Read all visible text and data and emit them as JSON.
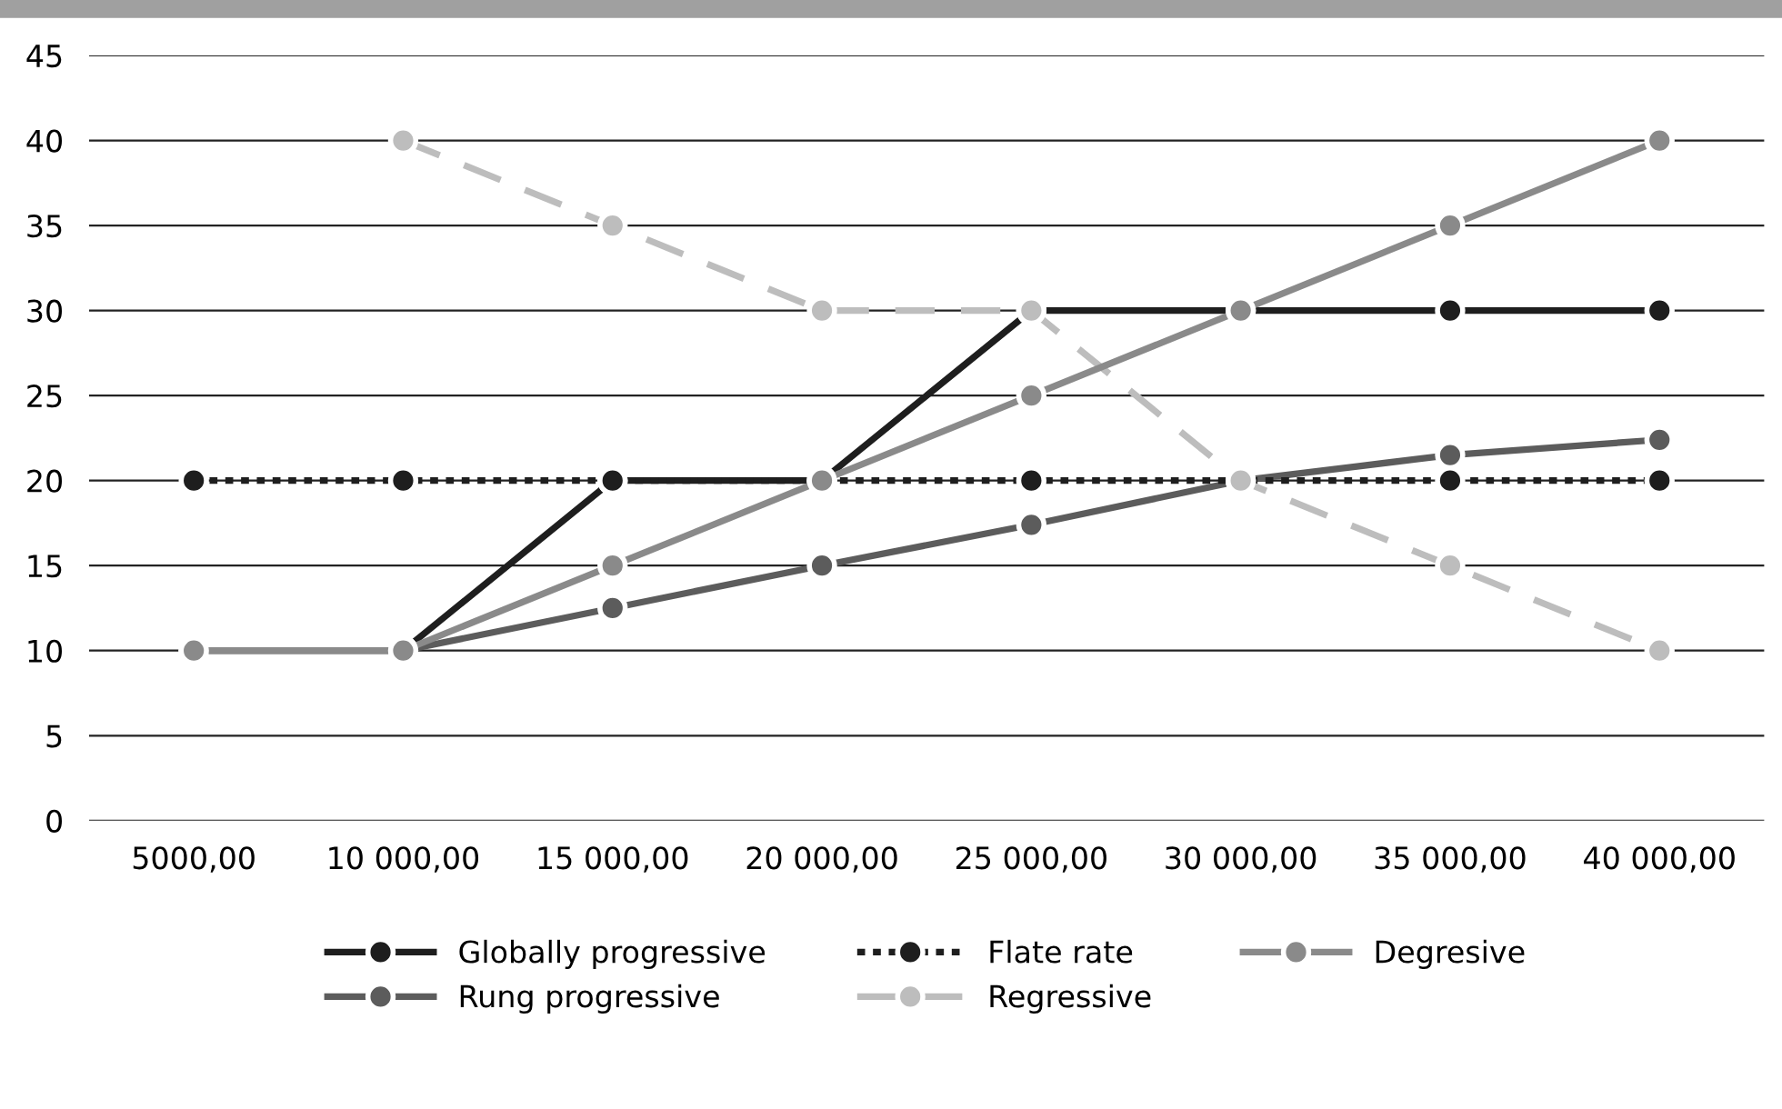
{
  "chart_data": {
    "type": "line",
    "categories": [
      "5000,00",
      "10 000,00",
      "15 000,00",
      "20 000,00",
      "25 000,00",
      "30 000,00",
      "35 000,00",
      "40 000,00"
    ],
    "series": [
      {
        "name": "Globally progressive",
        "color": "#1e1e1e",
        "line_style": "solid",
        "values": [
          10,
          10,
          20,
          20,
          30,
          30,
          30,
          30
        ]
      },
      {
        "name": "Rung progressive",
        "color": "#5c5c5c",
        "line_style": "solid",
        "values": [
          10,
          10,
          12.5,
          15,
          17.4,
          20,
          21.5,
          22.4
        ]
      },
      {
        "name": "Flate rate",
        "color": "#1e1e1e",
        "line_style": "dotted",
        "values": [
          20,
          20,
          20,
          20,
          20,
          20,
          20,
          20
        ]
      },
      {
        "name": "Regressive",
        "color": "#bdbdbd",
        "line_style": "dashed",
        "values": [
          null,
          40,
          35,
          30,
          30,
          20,
          15,
          10
        ]
      },
      {
        "name": "Degresive",
        "color": "#8a8a8a",
        "line_style": "solid",
        "values": [
          10,
          10,
          15,
          20,
          25,
          30,
          35,
          40
        ]
      }
    ],
    "ylim": [
      0,
      45
    ],
    "yticks": [
      0,
      5,
      10,
      15,
      20,
      25,
      30,
      35,
      40,
      45
    ],
    "grid": "y",
    "legend": "bottom",
    "marker": "circle"
  }
}
